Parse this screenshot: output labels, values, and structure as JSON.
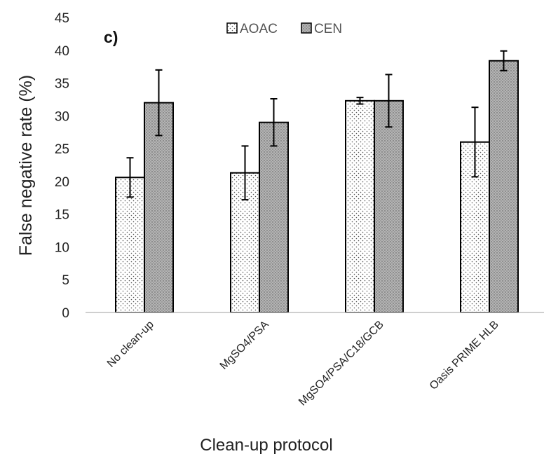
{
  "chart_data": {
    "type": "bar",
    "panel_label": "c)",
    "categories": [
      "No clean-up",
      "MgSO4/PSA",
      "MgSO4/PSA/C18/GCB",
      "Oasis PRIME HLB"
    ],
    "series": [
      {
        "name": "AOAC",
        "values": [
          20.6,
          21.3,
          32.3,
          26.0
        ],
        "errors": [
          3.0,
          4.1,
          0.5,
          5.3
        ],
        "pattern": "dotted-white"
      },
      {
        "name": "CEN",
        "values": [
          32.0,
          29.0,
          32.3,
          38.4
        ],
        "errors": [
          5.0,
          3.6,
          4.0,
          1.5
        ],
        "pattern": "dotted-gray"
      }
    ],
    "xlabel": "Clean-up protocol",
    "ylabel": "False negative rate (%)",
    "ylim": [
      0,
      45
    ],
    "yticks": [
      "0",
      "5",
      "10",
      "15",
      "20",
      "25",
      "30",
      "35",
      "40",
      "45"
    ],
    "grid": false,
    "legend_position": "top-center"
  }
}
